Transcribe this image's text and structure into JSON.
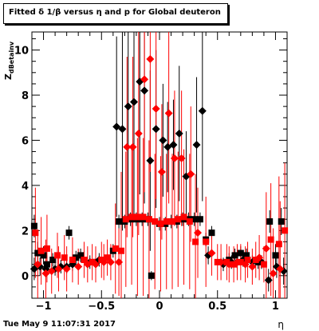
{
  "chart_data": {
    "type": "scatter",
    "title": "Fitted δ 1/β versus η and p for Global deuteron",
    "xlabel": "η",
    "ylabel": "Z",
    "ylabel_sub": "dBetainv",
    "xlim": [
      -1.1,
      1.1
    ],
    "ylim": [
      -1.0,
      10.8
    ],
    "x_ticks": [
      {
        "value": -1,
        "label": "−1"
      },
      {
        "value": -0.5,
        "label": "−0.5"
      },
      {
        "value": 0,
        "label": "0"
      },
      {
        "value": 0.5,
        "label": "0.5"
      },
      {
        "value": 1,
        "label": "1"
      }
    ],
    "y_ticks": [
      {
        "value": 0,
        "label": "0"
      },
      {
        "value": 2,
        "label": "2"
      },
      {
        "value": 4,
        "label": "4"
      },
      {
        "value": 6,
        "label": "6"
      },
      {
        "value": 8,
        "label": "8"
      },
      {
        "value": 10,
        "label": "10"
      }
    ],
    "grid": false,
    "series": [
      {
        "color": "#000000",
        "marker": "square",
        "points": [
          {
            "x": -1.08,
            "y": 2.2,
            "err": 0.5
          },
          {
            "x": -1.05,
            "y": 1.0,
            "err": 0.5
          },
          {
            "x": -1.0,
            "y": 0.9,
            "err": 0.4
          },
          {
            "x": -0.97,
            "y": 0.5,
            "err": 0.4
          },
          {
            "x": -0.92,
            "y": 0.7,
            "err": 0.3
          },
          {
            "x": -0.78,
            "y": 1.9,
            "err": 0.3
          },
          {
            "x": -0.72,
            "y": 0.8,
            "err": 0.3
          },
          {
            "x": -0.68,
            "y": 0.9,
            "err": 0.3
          },
          {
            "x": -0.55,
            "y": 0.6,
            "err": 0.3
          },
          {
            "x": -0.4,
            "y": 1.1,
            "err": 0.3
          },
          {
            "x": -0.35,
            "y": 2.4,
            "err": 0.3
          },
          {
            "x": -0.3,
            "y": 2.4,
            "err": 0.3
          },
          {
            "x": -0.25,
            "y": 2.5,
            "err": 0.3
          },
          {
            "x": -0.2,
            "y": 2.5,
            "err": 0.3
          },
          {
            "x": -0.15,
            "y": 2.5,
            "err": 0.3
          },
          {
            "x": -0.1,
            "y": 2.5,
            "err": 0.3
          },
          {
            "x": -0.07,
            "y": 0.0,
            "err": 0.2
          },
          {
            "x": 0.0,
            "y": 2.3,
            "err": 0.3
          },
          {
            "x": 0.05,
            "y": 2.3,
            "err": 0.3
          },
          {
            "x": 0.1,
            "y": 2.4,
            "err": 0.3
          },
          {
            "x": 0.15,
            "y": 2.4,
            "err": 0.3
          },
          {
            "x": 0.2,
            "y": 2.5,
            "err": 0.3
          },
          {
            "x": 0.25,
            "y": 2.5,
            "err": 0.3
          },
          {
            "x": 0.3,
            "y": 2.5,
            "err": 0.3
          },
          {
            "x": 0.35,
            "y": 2.5,
            "err": 0.3
          },
          {
            "x": 0.4,
            "y": 1.6,
            "err": 0.3
          },
          {
            "x": 0.45,
            "y": 1.9,
            "err": 0.3
          },
          {
            "x": 0.6,
            "y": 0.7,
            "err": 0.3
          },
          {
            "x": 0.65,
            "y": 0.9,
            "err": 0.3
          },
          {
            "x": 0.7,
            "y": 1.0,
            "err": 0.3
          },
          {
            "x": 0.75,
            "y": 0.9,
            "err": 0.3
          },
          {
            "x": 0.85,
            "y": 0.6,
            "err": 0.3
          },
          {
            "x": 0.95,
            "y": 2.4,
            "err": 0.5
          },
          {
            "x": 1.0,
            "y": 0.9,
            "err": 0.5
          },
          {
            "x": 1.05,
            "y": 2.4,
            "err": 0.6
          }
        ]
      },
      {
        "color": "#000000",
        "marker": "diamond",
        "points": [
          {
            "x": -1.08,
            "y": 0.3,
            "err": 0.5
          },
          {
            "x": -1.03,
            "y": 0.4,
            "err": 0.4
          },
          {
            "x": -0.98,
            "y": 0.3,
            "err": 0.4
          },
          {
            "x": -0.9,
            "y": 0.3,
            "err": 0.3
          },
          {
            "x": -0.85,
            "y": 0.4,
            "err": 0.3
          },
          {
            "x": -0.8,
            "y": 0.4,
            "err": 0.3
          },
          {
            "x": -0.75,
            "y": 0.5,
            "err": 0.3
          },
          {
            "x": -0.6,
            "y": 0.6,
            "err": 0.3
          },
          {
            "x": -0.52,
            "y": 0.7,
            "err": 0.3
          },
          {
            "x": -0.37,
            "y": 6.6,
            "err": 4.0
          },
          {
            "x": -0.32,
            "y": 6.5,
            "err": 4.5
          },
          {
            "x": -0.27,
            "y": 7.5,
            "err": 5.0
          },
          {
            "x": -0.22,
            "y": 7.7,
            "err": 5.0
          },
          {
            "x": -0.17,
            "y": 8.6,
            "err": 5.0
          },
          {
            "x": -0.13,
            "y": 8.2,
            "err": 5.0
          },
          {
            "x": -0.08,
            "y": 5.1,
            "err": 4.0
          },
          {
            "x": -0.03,
            "y": 6.5,
            "err": 3.5
          },
          {
            "x": 0.03,
            "y": 6.0,
            "err": 2.5
          },
          {
            "x": 0.07,
            "y": 5.7,
            "err": 2.0
          },
          {
            "x": 0.12,
            "y": 5.8,
            "err": 2.0
          },
          {
            "x": 0.17,
            "y": 6.3,
            "err": 3.0
          },
          {
            "x": 0.23,
            "y": 4.4,
            "err": 2.0
          },
          {
            "x": 0.32,
            "y": 5.8,
            "err": 3.0
          },
          {
            "x": 0.37,
            "y": 7.3,
            "err": 4.0
          },
          {
            "x": 0.42,
            "y": 0.9,
            "err": 0.4
          },
          {
            "x": 0.55,
            "y": 0.5,
            "err": 0.3
          },
          {
            "x": 0.62,
            "y": 0.6,
            "err": 0.3
          },
          {
            "x": 0.67,
            "y": 0.6,
            "err": 0.3
          },
          {
            "x": 0.72,
            "y": 0.7,
            "err": 0.3
          },
          {
            "x": 0.8,
            "y": 0.6,
            "err": 0.3
          },
          {
            "x": 0.88,
            "y": 0.6,
            "err": 0.3
          },
          {
            "x": 0.94,
            "y": -0.2,
            "err": 0.5
          },
          {
            "x": 1.01,
            "y": 0.4,
            "err": 0.5
          },
          {
            "x": 1.07,
            "y": 0.2,
            "err": 0.6
          }
        ]
      },
      {
        "color": "#ff0000",
        "marker": "square",
        "points": [
          {
            "x": -1.07,
            "y": 1.9,
            "err": 2.0
          },
          {
            "x": -1.02,
            "y": 1.1,
            "err": 1.5
          },
          {
            "x": -0.97,
            "y": 1.2,
            "err": 1.5
          },
          {
            "x": -0.88,
            "y": 0.9,
            "err": 1.0
          },
          {
            "x": -0.82,
            "y": 0.8,
            "err": 1.0
          },
          {
            "x": -0.75,
            "y": 0.7,
            "err": 1.0
          },
          {
            "x": -0.65,
            "y": 0.7,
            "err": 0.8
          },
          {
            "x": -0.58,
            "y": 0.6,
            "err": 0.8
          },
          {
            "x": -0.5,
            "y": 0.7,
            "err": 0.8
          },
          {
            "x": -0.45,
            "y": 0.8,
            "err": 0.8
          },
          {
            "x": -0.38,
            "y": 1.2,
            "err": 2.0
          },
          {
            "x": -0.33,
            "y": 1.1,
            "err": 3.5
          },
          {
            "x": -0.29,
            "y": 2.5,
            "err": 3.0
          },
          {
            "x": -0.24,
            "y": 2.6,
            "err": 3.0
          },
          {
            "x": -0.19,
            "y": 2.6,
            "err": 3.5
          },
          {
            "x": -0.14,
            "y": 2.6,
            "err": 3.5
          },
          {
            "x": -0.09,
            "y": 2.5,
            "err": 3.5
          },
          {
            "x": -0.04,
            "y": 2.4,
            "err": 3.0
          },
          {
            "x": 0.01,
            "y": 2.3,
            "err": 3.0
          },
          {
            "x": 0.06,
            "y": 2.4,
            "err": 3.0
          },
          {
            "x": 0.11,
            "y": 2.4,
            "err": 3.0
          },
          {
            "x": 0.16,
            "y": 2.5,
            "err": 3.0
          },
          {
            "x": 0.21,
            "y": 2.6,
            "err": 3.0
          },
          {
            "x": 0.26,
            "y": 2.4,
            "err": 3.0
          },
          {
            "x": 0.31,
            "y": 1.5,
            "err": 3.0
          },
          {
            "x": 0.4,
            "y": 1.5,
            "err": 2.0
          },
          {
            "x": 0.5,
            "y": 0.6,
            "err": 0.8
          },
          {
            "x": 0.58,
            "y": 0.6,
            "err": 0.8
          },
          {
            "x": 0.64,
            "y": 0.5,
            "err": 0.8
          },
          {
            "x": 0.7,
            "y": 0.6,
            "err": 0.8
          },
          {
            "x": 0.76,
            "y": 0.7,
            "err": 0.8
          },
          {
            "x": 0.83,
            "y": 0.7,
            "err": 0.8
          },
          {
            "x": 0.9,
            "y": 0.5,
            "err": 0.8
          },
          {
            "x": 0.96,
            "y": 1.6,
            "err": 2.5
          },
          {
            "x": 1.03,
            "y": 1.4,
            "err": 3.0
          },
          {
            "x": 1.08,
            "y": 2.0,
            "err": 3.0
          }
        ]
      },
      {
        "color": "#ff0000",
        "marker": "diamond",
        "points": [
          {
            "x": -1.05,
            "y": 0.5,
            "err": 1.5
          },
          {
            "x": -0.98,
            "y": 0.1,
            "err": 1.5
          },
          {
            "x": -0.93,
            "y": 0.2,
            "err": 1.0
          },
          {
            "x": -0.87,
            "y": 0.3,
            "err": 1.0
          },
          {
            "x": -0.8,
            "y": 0.3,
            "err": 1.0
          },
          {
            "x": -0.7,
            "y": 0.4,
            "err": 0.8
          },
          {
            "x": -0.62,
            "y": 0.5,
            "err": 0.8
          },
          {
            "x": -0.55,
            "y": 0.5,
            "err": 0.8
          },
          {
            "x": -0.48,
            "y": 0.6,
            "err": 0.8
          },
          {
            "x": -0.42,
            "y": 0.6,
            "err": 0.8
          },
          {
            "x": -0.35,
            "y": 0.6,
            "err": 1.5
          },
          {
            "x": -0.28,
            "y": 5.7,
            "err": 4.0
          },
          {
            "x": -0.23,
            "y": 5.7,
            "err": 4.0
          },
          {
            "x": -0.18,
            "y": 6.3,
            "err": 4.5
          },
          {
            "x": -0.13,
            "y": 8.7,
            "err": 5.0
          },
          {
            "x": -0.08,
            "y": 9.6,
            "err": 5.0
          },
          {
            "x": -0.03,
            "y": 7.4,
            "err": 4.0
          },
          {
            "x": 0.02,
            "y": 4.6,
            "err": 3.0
          },
          {
            "x": 0.08,
            "y": 7.2,
            "err": 4.0
          },
          {
            "x": 0.13,
            "y": 5.2,
            "err": 3.0
          },
          {
            "x": 0.19,
            "y": 5.2,
            "err": 3.0
          },
          {
            "x": 0.27,
            "y": 4.5,
            "err": 3.0
          },
          {
            "x": 0.33,
            "y": 1.9,
            "err": 2.0
          },
          {
            "x": 0.45,
            "y": 1.0,
            "err": 1.0
          },
          {
            "x": 0.53,
            "y": 0.6,
            "err": 0.8
          },
          {
            "x": 0.6,
            "y": 0.5,
            "err": 0.8
          },
          {
            "x": 0.67,
            "y": 0.6,
            "err": 0.8
          },
          {
            "x": 0.74,
            "y": 0.5,
            "err": 0.8
          },
          {
            "x": 0.8,
            "y": 0.4,
            "err": 0.8
          },
          {
            "x": 0.86,
            "y": 0.8,
            "err": 1.0
          },
          {
            "x": 0.92,
            "y": 1.2,
            "err": 2.5
          },
          {
            "x": 0.98,
            "y": 0.1,
            "err": 2.0
          },
          {
            "x": 1.04,
            "y": 0.3,
            "err": 3.0
          }
        ]
      }
    ]
  },
  "footer": {
    "timestamp": "Tue May  9 11:07:31 2017"
  }
}
